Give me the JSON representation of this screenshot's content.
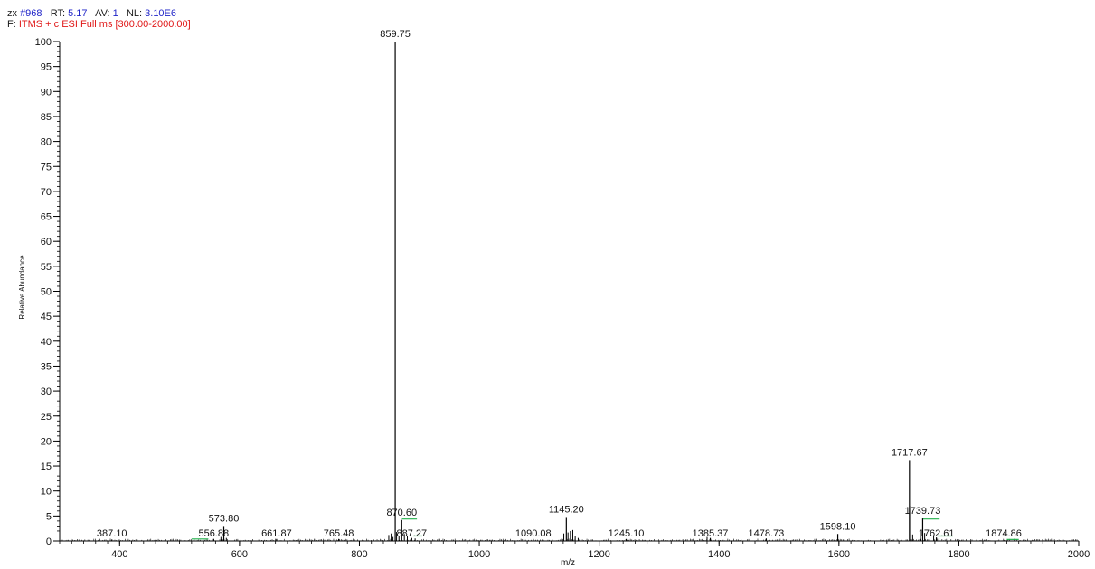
{
  "header": {
    "scan_label": "zx",
    "scan_value": "#968",
    "rt_label": "RT:",
    "rt_value": "5.17",
    "av_label": "AV:",
    "av_value": "1",
    "nl_label": "NL:",
    "nl_value": "3.10E6",
    "filter_label": "F:",
    "filter_value": "ITMS + c ESI Full ms [300.00-2000.00]"
  },
  "colors": {
    "header_value_blue": "#1f24c8",
    "filter_red": "#e01818",
    "peak": "#000000",
    "marker_green": "#22b14c"
  },
  "chart_data": {
    "type": "bar",
    "xlabel": "m/z",
    "ylabel": "Relative Abundance",
    "xlim": [
      300,
      2000
    ],
    "ylim": [
      0,
      100
    ],
    "xticks": [
      400,
      600,
      800,
      1000,
      1200,
      1400,
      1600,
      1800,
      2000
    ],
    "yticks": [
      0,
      5,
      10,
      15,
      20,
      25,
      30,
      35,
      40,
      45,
      50,
      55,
      60,
      65,
      70,
      75,
      80,
      85,
      90,
      95,
      100
    ],
    "grid": false,
    "labeled_peaks": [
      {
        "mz": 387.1,
        "label": "387.10",
        "intensity": 0.3
      },
      {
        "mz": 556.88,
        "label": "556.88",
        "intensity": 0.4
      },
      {
        "mz": 573.8,
        "label": "573.80",
        "intensity": 3.0
      },
      {
        "mz": 661.87,
        "label": "661.87",
        "intensity": 0.4
      },
      {
        "mz": 765.48,
        "label": "765.48",
        "intensity": 0.4
      },
      {
        "mz": 859.75,
        "label": "859.75",
        "intensity": 100
      },
      {
        "mz": 870.6,
        "label": "870.60",
        "intensity": 4.2
      },
      {
        "mz": 887.27,
        "label": "887.27",
        "intensity": 0.6
      },
      {
        "mz": 1090.08,
        "label": "1090.08",
        "intensity": 0.4
      },
      {
        "mz": 1145.2,
        "label": "1145.20",
        "intensity": 4.8
      },
      {
        "mz": 1245.1,
        "label": "1245.10",
        "intensity": 0.4
      },
      {
        "mz": 1385.37,
        "label": "1385.37",
        "intensity": 0.6
      },
      {
        "mz": 1478.73,
        "label": "1478.73",
        "intensity": 0.5
      },
      {
        "mz": 1598.1,
        "label": "1598.10",
        "intensity": 1.4
      },
      {
        "mz": 1717.67,
        "label": "1717.67",
        "intensity": 16.2
      },
      {
        "mz": 1739.73,
        "label": "1739.73",
        "intensity": 4.5
      },
      {
        "mz": 1762.61,
        "label": "1762.61",
        "intensity": 0.7
      },
      {
        "mz": 1874.86,
        "label": "1874.86",
        "intensity": 0.2
      }
    ],
    "minor_peaks": [
      {
        "mz": 849,
        "intensity": 1.2
      },
      {
        "mz": 853,
        "intensity": 1.5
      },
      {
        "mz": 856,
        "intensity": 0.8
      },
      {
        "mz": 862,
        "intensity": 1.8
      },
      {
        "mz": 866,
        "intensity": 1.0
      },
      {
        "mz": 875,
        "intensity": 1.4
      },
      {
        "mz": 880,
        "intensity": 0.9
      },
      {
        "mz": 893,
        "intensity": 0.5
      },
      {
        "mz": 569,
        "intensity": 0.8
      },
      {
        "mz": 578,
        "intensity": 0.6
      },
      {
        "mz": 1141,
        "intensity": 1.5
      },
      {
        "mz": 1148,
        "intensity": 1.7
      },
      {
        "mz": 1152,
        "intensity": 2.0
      },
      {
        "mz": 1156,
        "intensity": 2.2
      },
      {
        "mz": 1160,
        "intensity": 1.0
      },
      {
        "mz": 1165,
        "intensity": 0.6
      },
      {
        "mz": 1380,
        "intensity": 0.8
      },
      {
        "mz": 1720,
        "intensity": 7.0
      },
      {
        "mz": 1723,
        "intensity": 1.3
      },
      {
        "mz": 1736,
        "intensity": 1.0
      },
      {
        "mz": 1743,
        "intensity": 1.6
      },
      {
        "mz": 1758,
        "intensity": 1.1
      },
      {
        "mz": 1767,
        "intensity": 0.5
      }
    ],
    "green_markers": [
      {
        "mz_start": 520,
        "mz_end": 548,
        "intensity": 0.4
      },
      {
        "mz_start": 871,
        "mz_end": 896,
        "intensity": 4.4
      },
      {
        "mz_start": 890,
        "mz_end": 905,
        "intensity": 1.0
      },
      {
        "mz_start": 1739,
        "mz_end": 1768,
        "intensity": 4.4
      },
      {
        "mz_start": 1765,
        "mz_end": 1790,
        "intensity": 1.0
      },
      {
        "mz_start": 1880,
        "mz_end": 1900,
        "intensity": 0.3
      }
    ]
  }
}
